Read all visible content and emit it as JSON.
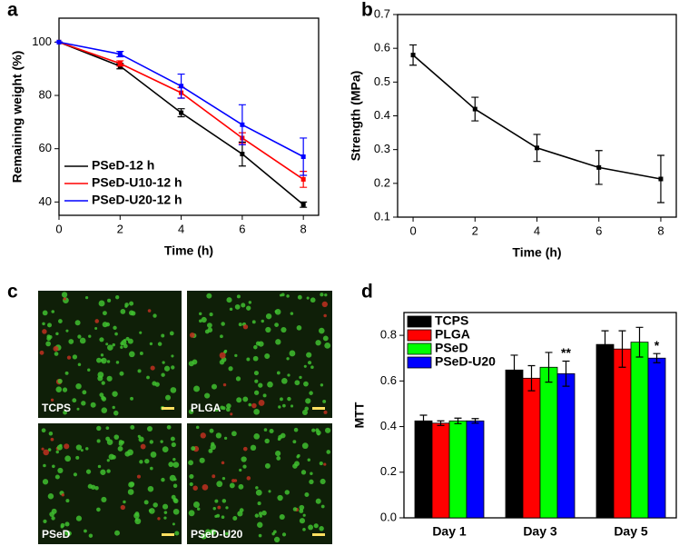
{
  "chart_data": [
    {
      "type": "line",
      "panel_label": "a",
      "x_label": "Time (h)",
      "y_label": "Remaining weight (%)",
      "x": [
        0,
        2,
        4,
        6,
        8
      ],
      "xlim": [
        0,
        8.5
      ],
      "xticks": [
        0,
        2,
        4,
        6,
        8
      ],
      "ylim": [
        35,
        109
      ],
      "yticks": [
        40,
        60,
        80,
        100
      ],
      "legend": "lower left",
      "series": [
        {
          "name": "PSeD-12 h",
          "color": "#000000",
          "values": [
            100,
            91,
            73.5,
            58,
            39
          ],
          "errors": [
            0,
            1,
            1.5,
            4.5,
            1
          ]
        },
        {
          "name": "PSeD-U10-12 h",
          "color": "#ff0000",
          "values": [
            100,
            92,
            81,
            64,
            48.5
          ],
          "errors": [
            0,
            1,
            2,
            2,
            3
          ]
        },
        {
          "name": "PSeD-U20-12 h",
          "color": "#0000ff",
          "values": [
            100,
            95.5,
            83.5,
            69,
            57
          ],
          "errors": [
            0,
            1,
            4.5,
            7.5,
            7
          ]
        }
      ]
    },
    {
      "type": "line",
      "panel_label": "b",
      "x_label": "Time (h)",
      "y_label": "Strength (MPa)",
      "x": [
        0,
        2,
        4,
        6,
        8
      ],
      "xlim": [
        -0.5,
        8.5
      ],
      "xticks": [
        0,
        2,
        4,
        6,
        8
      ],
      "ylim": [
        0.1,
        0.7
      ],
      "yticks": [
        0.1,
        0.2,
        0.3,
        0.4,
        0.5,
        0.6,
        0.7
      ],
      "series": [
        {
          "color": "#000000",
          "values": [
            0.58,
            0.42,
            0.305,
            0.247,
            0.213
          ],
          "errors": [
            0.03,
            0.035,
            0.04,
            0.05,
            0.07
          ]
        }
      ]
    },
    {
      "type": "bar",
      "panel_label": "d",
      "y_label": "MTT",
      "categories": [
        "Day 1",
        "Day 3",
        "Day 5"
      ],
      "ylim": [
        0,
        0.9
      ],
      "yticks": [
        {
          "value": 0,
          "label": "0.0"
        },
        0.2,
        0.4,
        0.6,
        0.8
      ],
      "legend": "upper left",
      "annotations": [
        "**",
        "*"
      ],
      "series": [
        {
          "name": "TCPS",
          "color": "#000000",
          "values": [
            0.425,
            0.648,
            0.76
          ],
          "errors": [
            0.025,
            0.065,
            0.06
          ]
        },
        {
          "name": "PLGA",
          "color": "#ff0000",
          "values": [
            0.415,
            0.612,
            0.74
          ],
          "errors": [
            0.01,
            0.055,
            0.08
          ]
        },
        {
          "name": "PSeD",
          "color": "#00ff00",
          "values": [
            0.425,
            0.66,
            0.77
          ],
          "errors": [
            0.012,
            0.065,
            0.065
          ]
        },
        {
          "name": "PSeD-U20",
          "color": "#0000ff",
          "values": [
            0.425,
            0.632,
            0.7
          ],
          "errors": [
            0.01,
            0.055,
            0.02
          ]
        }
      ]
    }
  ],
  "images": {
    "panel_label": "c",
    "labels": [
      "TCPS",
      "PLGA",
      "PSeD",
      "PSeD-U20"
    ]
  }
}
